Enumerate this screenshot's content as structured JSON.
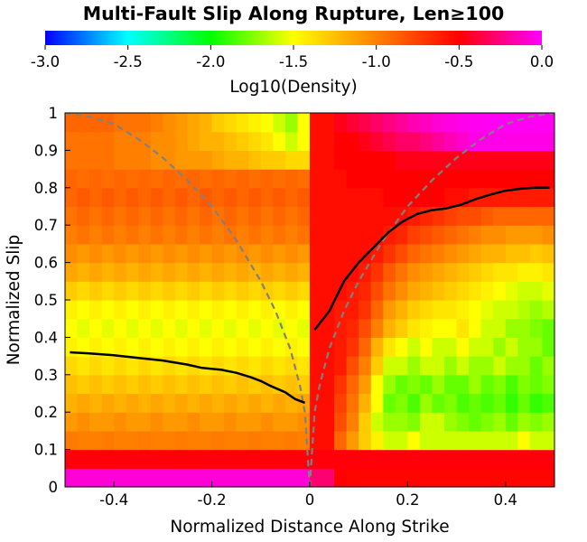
{
  "chart_data": {
    "type": "heatmap",
    "title": "Multi-Fault Slip Along Rupture, Len≥100",
    "xlabel": "Normalized Distance Along Strike",
    "ylabel": "Normalized Slip",
    "xlim": [
      -0.5,
      0.5
    ],
    "ylim": [
      0,
      1
    ],
    "x_ticks": [
      "-0.4",
      "-0.2",
      "0",
      "0.2",
      "0.4"
    ],
    "x_tick_values": [
      -0.4,
      -0.2,
      0,
      0.2,
      0.4
    ],
    "y_ticks": [
      "0",
      "0.1",
      "0.2",
      "0.3",
      "0.4",
      "0.5",
      "0.6",
      "0.7",
      "0.8",
      "0.9",
      "1"
    ],
    "y_tick_values": [
      0,
      0.1,
      0.2,
      0.3,
      0.4,
      0.5,
      0.6,
      0.7,
      0.8,
      0.9,
      1.0
    ],
    "colorbar": {
      "label": "Log10(Density)",
      "range": [
        -3.0,
        0.0
      ],
      "ticks": [
        "-3.0",
        "-2.5",
        "-2.0",
        "-1.5",
        "-1.0",
        "-0.5",
        "0.0"
      ],
      "tick_values": [
        -3.0,
        -2.5,
        -2.0,
        -1.5,
        -1.0,
        -0.5,
        0.0
      ],
      "colormap": [
        "#0000ff",
        "#00ffff",
        "#00ff00",
        "#ffff00",
        "#ff8000",
        "#ff0000",
        "#ff00ff"
      ]
    },
    "density_grid": {
      "x_start": -0.5,
      "x_step": 0.025,
      "y_start": 0.0,
      "y_step": 0.05,
      "rows": [
        [
          -0.08,
          -0.08,
          -0.08,
          -0.08,
          -0.08,
          -0.08,
          -0.08,
          -0.08,
          -0.08,
          -0.08,
          -0.08,
          -0.08,
          -0.08,
          -0.08,
          -0.08,
          -0.08,
          -0.08,
          -0.08,
          -0.08,
          -0.08,
          -0.28,
          -0.28,
          -0.5,
          -0.52,
          -0.52,
          -0.52,
          -0.52,
          -0.52,
          -0.52,
          -0.52,
          -0.52,
          -0.52,
          -0.52,
          -0.52,
          -0.52,
          -0.52,
          -0.52,
          -0.52,
          -0.52,
          -0.52
        ],
        [
          -0.48,
          -0.48,
          -0.48,
          -0.48,
          -0.48,
          -0.48,
          -0.48,
          -0.48,
          -0.48,
          -0.48,
          -0.48,
          -0.48,
          -0.48,
          -0.48,
          -0.48,
          -0.48,
          -0.48,
          -0.48,
          -0.48,
          -0.48,
          -0.48,
          -0.48,
          -0.48,
          -0.48,
          -0.48,
          -0.48,
          -0.48,
          -0.48,
          -0.48,
          -0.48,
          -0.48,
          -0.48,
          -0.48,
          -0.48,
          -0.48,
          -0.48,
          -0.48,
          -0.48,
          -0.48,
          -0.48
        ],
        [
          -0.98,
          -1.0,
          -1.0,
          -0.98,
          -1.0,
          -1.0,
          -0.98,
          -1.0,
          -1.0,
          -0.98,
          -1.0,
          -1.0,
          -0.98,
          -1.0,
          -1.0,
          -0.98,
          -1.0,
          -1.0,
          -0.98,
          -1.0,
          -0.55,
          -0.55,
          -0.9,
          -1.1,
          -1.3,
          -1.45,
          -1.6,
          -1.6,
          -1.5,
          -1.6,
          -1.6,
          -1.6,
          -1.6,
          -1.6,
          -1.6,
          -1.6,
          -1.6,
          -1.5,
          -1.6,
          -1.6
        ],
        [
          -1.1,
          -1.05,
          -1.1,
          -1.1,
          -1.05,
          -1.1,
          -1.1,
          -1.05,
          -1.1,
          -1.1,
          -1.05,
          -1.1,
          -1.1,
          -1.05,
          -1.1,
          -1.1,
          -1.05,
          -1.1,
          -1.1,
          -1.05,
          -0.55,
          -0.55,
          -0.8,
          -1.0,
          -1.3,
          -1.6,
          -1.7,
          -1.7,
          -1.75,
          -1.6,
          -1.6,
          -1.7,
          -1.75,
          -1.8,
          -1.75,
          -1.7,
          -1.8,
          -1.7,
          -1.75,
          -1.7
        ],
        [
          -1.2,
          -1.15,
          -1.2,
          -1.15,
          -1.2,
          -1.15,
          -1.2,
          -1.15,
          -1.2,
          -1.15,
          -1.2,
          -1.15,
          -1.2,
          -1.15,
          -1.2,
          -1.15,
          -1.2,
          -1.15,
          -1.2,
          -1.15,
          -0.55,
          -0.55,
          -0.75,
          -0.95,
          -1.2,
          -1.5,
          -1.8,
          -1.75,
          -1.85,
          -1.7,
          -1.8,
          -1.75,
          -1.85,
          -1.8,
          -1.85,
          -1.8,
          -1.9,
          -1.8,
          -1.9,
          -1.85
        ],
        [
          -1.25,
          -1.3,
          -1.25,
          -1.3,
          -1.25,
          -1.3,
          -1.25,
          -1.3,
          -1.25,
          -1.3,
          -1.25,
          -1.3,
          -1.25,
          -1.3,
          -1.25,
          -1.3,
          -1.25,
          -1.3,
          -1.25,
          -1.3,
          -0.55,
          -0.55,
          -0.7,
          -0.9,
          -1.1,
          -1.5,
          -1.7,
          -1.8,
          -1.75,
          -1.8,
          -1.7,
          -1.8,
          -1.8,
          -1.7,
          -1.8,
          -1.75,
          -1.85,
          -1.75,
          -1.8,
          -1.75
        ],
        [
          -1.35,
          -1.4,
          -1.35,
          -1.4,
          -1.35,
          -1.4,
          -1.35,
          -1.4,
          -1.35,
          -1.4,
          -1.35,
          -1.4,
          -1.35,
          -1.4,
          -1.35,
          -1.4,
          -1.35,
          -1.4,
          -1.35,
          -1.4,
          -0.55,
          -0.55,
          -0.6,
          -0.8,
          -1.0,
          -1.3,
          -1.6,
          -1.6,
          -1.7,
          -1.6,
          -1.6,
          -1.7,
          -1.6,
          -1.7,
          -1.7,
          -1.6,
          -1.7,
          -1.7,
          -1.8,
          -1.7
        ],
        [
          -1.45,
          -1.5,
          -1.45,
          -1.5,
          -1.45,
          -1.5,
          -1.45,
          -1.5,
          -1.45,
          -1.5,
          -1.45,
          -1.5,
          -1.45,
          -1.5,
          -1.45,
          -1.5,
          -1.45,
          -1.5,
          -1.45,
          -1.5,
          -0.55,
          -0.55,
          -0.6,
          -0.7,
          -0.9,
          -1.2,
          -1.4,
          -1.5,
          -1.6,
          -1.5,
          -1.6,
          -1.6,
          -1.5,
          -1.6,
          -1.6,
          -1.7,
          -1.6,
          -1.7,
          -1.7,
          -1.8
        ],
        [
          -1.5,
          -1.55,
          -1.5,
          -1.55,
          -1.5,
          -1.55,
          -1.5,
          -1.55,
          -1.5,
          -1.55,
          -1.5,
          -1.55,
          -1.5,
          -1.55,
          -1.5,
          -1.55,
          -1.5,
          -1.55,
          -1.5,
          -1.55,
          -0.55,
          -0.55,
          -0.6,
          -0.65,
          -0.8,
          -1.0,
          -1.2,
          -1.3,
          -1.4,
          -1.45,
          -1.5,
          -1.5,
          -1.4,
          -1.5,
          -1.6,
          -1.6,
          -1.7,
          -1.7,
          -1.75,
          -1.8
        ],
        [
          -1.45,
          -1.5,
          -1.45,
          -1.5,
          -1.45,
          -1.5,
          -1.45,
          -1.5,
          -1.45,
          -1.5,
          -1.45,
          -1.5,
          -1.45,
          -1.5,
          -1.45,
          -1.5,
          -1.45,
          -1.5,
          -1.45,
          -1.5,
          -0.55,
          -0.55,
          -0.6,
          -0.6,
          -0.7,
          -0.9,
          -1.1,
          -1.2,
          -1.3,
          -1.35,
          -1.4,
          -1.4,
          -1.45,
          -1.5,
          -1.55,
          -1.6,
          -1.6,
          -1.65,
          -1.7,
          -1.65
        ],
        [
          -1.3,
          -1.35,
          -1.3,
          -1.35,
          -1.3,
          -1.35,
          -1.3,
          -1.35,
          -1.3,
          -1.35,
          -1.3,
          -1.35,
          -1.3,
          -1.35,
          -1.3,
          -1.35,
          -1.3,
          -1.35,
          -1.3,
          -1.35,
          -0.55,
          -0.55,
          -0.55,
          -0.6,
          -0.65,
          -0.8,
          -0.95,
          -1.05,
          -1.15,
          -1.2,
          -1.25,
          -1.3,
          -1.35,
          -1.4,
          -1.45,
          -1.5,
          -1.55,
          -1.6,
          -1.6,
          -1.55
        ],
        [
          -1.15,
          -1.2,
          -1.15,
          -1.2,
          -1.15,
          -1.2,
          -1.15,
          -1.2,
          -1.15,
          -1.2,
          -1.15,
          -1.2,
          -1.15,
          -1.2,
          -1.15,
          -1.2,
          -1.15,
          -1.2,
          -1.15,
          -1.2,
          -0.55,
          -0.55,
          -0.55,
          -0.55,
          -0.6,
          -0.7,
          -0.85,
          -0.95,
          -1.05,
          -1.1,
          -1.15,
          -1.2,
          -1.25,
          -1.3,
          -1.35,
          -1.4,
          -1.4,
          -1.45,
          -1.45,
          -1.4
        ],
        [
          -1.05,
          -1.1,
          -1.05,
          -1.1,
          -1.05,
          -1.1,
          -1.05,
          -1.1,
          -1.05,
          -1.1,
          -1.05,
          -1.1,
          -1.05,
          -1.1,
          -1.05,
          -1.1,
          -1.05,
          -1.1,
          -1.05,
          -1.1,
          -0.55,
          -0.55,
          -0.55,
          -0.55,
          -0.55,
          -0.6,
          -0.7,
          -0.8,
          -0.9,
          -0.95,
          -1.0,
          -1.05,
          -1.1,
          -1.15,
          -1.2,
          -1.2,
          -1.25,
          -1.25,
          -1.3,
          -1.25
        ],
        [
          -1.0,
          -0.95,
          -1.0,
          -0.95,
          -1.0,
          -0.95,
          -1.0,
          -0.95,
          -1.0,
          -0.95,
          -1.0,
          -0.95,
          -1.0,
          -0.95,
          -1.0,
          -0.95,
          -1.0,
          -0.95,
          -1.0,
          -0.95,
          -0.55,
          -0.55,
          -0.55,
          -0.55,
          -0.55,
          -0.55,
          -0.6,
          -0.65,
          -0.75,
          -0.8,
          -0.85,
          -0.9,
          -0.95,
          -1.0,
          -1.05,
          -1.05,
          -1.1,
          -1.1,
          -1.1,
          -1.05
        ],
        [
          -0.95,
          -0.9,
          -0.95,
          -0.9,
          -0.95,
          -0.9,
          -0.95,
          -0.9,
          -0.95,
          -0.9,
          -0.95,
          -0.9,
          -0.95,
          -0.9,
          -0.95,
          -0.9,
          -0.95,
          -0.9,
          -0.95,
          -0.9,
          -0.55,
          -0.55,
          -0.55,
          -0.55,
          -0.55,
          -0.55,
          -0.55,
          -0.55,
          -0.6,
          -0.65,
          -0.7,
          -0.75,
          -0.8,
          -0.8,
          -0.85,
          -0.9,
          -0.9,
          -0.9,
          -0.9,
          -0.9
        ],
        [
          -0.9,
          -0.85,
          -0.9,
          -0.85,
          -0.9,
          -0.85,
          -0.9,
          -0.85,
          -0.9,
          -0.85,
          -0.9,
          -0.85,
          -0.9,
          -0.85,
          -0.9,
          -0.85,
          -0.9,
          -0.85,
          -0.9,
          -0.85,
          -0.55,
          -0.55,
          -0.55,
          -0.55,
          -0.55,
          -0.55,
          -0.5,
          -0.5,
          -0.5,
          -0.5,
          -0.5,
          -0.55,
          -0.55,
          -0.6,
          -0.6,
          -0.6,
          -0.6,
          -0.6,
          -0.6,
          -0.6
        ],
        [
          -0.9,
          -0.92,
          -0.9,
          -0.92,
          -0.9,
          -0.92,
          -0.9,
          -0.92,
          -0.9,
          -0.92,
          -0.9,
          -0.92,
          -0.9,
          -0.92,
          -0.9,
          -0.92,
          -0.9,
          -0.92,
          -0.9,
          -0.92,
          -0.55,
          -0.55,
          -0.55,
          -0.5,
          -0.5,
          -0.5,
          -0.5,
          -0.5,
          -0.5,
          -0.5,
          -0.5,
          -0.5,
          -0.5,
          -0.5,
          -0.5,
          -0.5,
          -0.5,
          -0.5,
          -0.5,
          -0.5
        ],
        [
          -0.95,
          -0.95,
          -0.95,
          -0.95,
          -1.0,
          -1.0,
          -1.0,
          -1.05,
          -1.05,
          -1.1,
          -1.1,
          -1.1,
          -1.15,
          -1.2,
          -1.2,
          -1.25,
          -1.3,
          -1.3,
          -1.35,
          -1.35,
          -0.55,
          -0.55,
          -0.5,
          -0.5,
          -0.5,
          -0.5,
          -0.5,
          -0.45,
          -0.45,
          -0.45,
          -0.45,
          -0.45,
          -0.45,
          -0.45,
          -0.45,
          -0.45,
          -0.45,
          -0.45,
          -0.45,
          -0.45
        ],
        [
          -0.95,
          -0.95,
          -0.95,
          -0.95,
          -1.0,
          -1.0,
          -1.0,
          -1.05,
          -1.05,
          -1.1,
          -1.15,
          -1.2,
          -1.2,
          -1.25,
          -1.3,
          -1.35,
          -1.4,
          -1.5,
          -1.6,
          -1.5,
          -0.55,
          -0.55,
          -0.5,
          -0.5,
          -0.45,
          -0.4,
          -0.35,
          -0.3,
          -0.3,
          -0.25,
          -0.2,
          -0.15,
          -0.1,
          -0.05,
          -0.05,
          -0.05,
          -0.05,
          -0.05,
          -0.05,
          -0.05
        ],
        [
          -0.9,
          -0.9,
          -0.9,
          -0.9,
          -0.95,
          -0.95,
          -0.95,
          -1.0,
          -1.05,
          -1.1,
          -1.15,
          -1.2,
          -1.3,
          -1.35,
          -1.4,
          -1.45,
          -1.5,
          -1.6,
          -1.7,
          -1.5,
          -0.55,
          -0.55,
          -0.45,
          -0.4,
          -0.35,
          -0.3,
          -0.25,
          -0.2,
          -0.15,
          -0.12,
          -0.08,
          -0.06,
          -0.04,
          -0.03,
          -0.02,
          -0.02,
          -0.02,
          -0.02,
          -0.02,
          -0.02
        ]
      ]
    },
    "series": [
      {
        "x": [
          -0.49,
          -0.45,
          -0.4,
          -0.35,
          -0.3,
          -0.25,
          -0.22,
          -0.18,
          -0.15,
          -0.12,
          -0.1,
          -0.08,
          -0.05,
          -0.03,
          -0.01
        ],
        "y": [
          0.36,
          0.357,
          0.352,
          0.345,
          0.338,
          0.327,
          0.318,
          0.313,
          0.305,
          0.293,
          0.283,
          0.27,
          0.253,
          0.235,
          0.225
        ]
      },
      {
        "x": [
          0.01,
          0.04,
          0.07,
          0.1,
          0.13,
          0.16,
          0.19,
          0.22,
          0.25,
          0.28,
          0.31,
          0.34,
          0.37,
          0.4,
          0.43,
          0.46,
          0.49
        ],
        "y": [
          0.42,
          0.47,
          0.55,
          0.6,
          0.64,
          0.68,
          0.71,
          0.73,
          0.74,
          0.745,
          0.755,
          0.77,
          0.782,
          0.792,
          0.797,
          0.8,
          0.8
        ]
      }
    ],
    "reference_curves": [
      {
        "x": [
          -0.5,
          -0.45,
          -0.4,
          -0.35,
          -0.3,
          -0.25,
          -0.2,
          -0.15,
          -0.1,
          -0.07,
          -0.04,
          -0.02,
          -0.01,
          0
        ],
        "y": [
          1.0,
          0.99,
          0.97,
          0.93,
          0.88,
          0.82,
          0.75,
          0.66,
          0.55,
          0.47,
          0.37,
          0.27,
          0.2,
          0.0
        ]
      },
      {
        "x": [
          0,
          0.01,
          0.02,
          0.04,
          0.07,
          0.1,
          0.15,
          0.2,
          0.25,
          0.3,
          0.35,
          0.4,
          0.45,
          0.5
        ],
        "y": [
          0.0,
          0.2,
          0.27,
          0.37,
          0.47,
          0.55,
          0.66,
          0.75,
          0.82,
          0.88,
          0.93,
          0.97,
          0.99,
          1.0
        ]
      }
    ]
  }
}
